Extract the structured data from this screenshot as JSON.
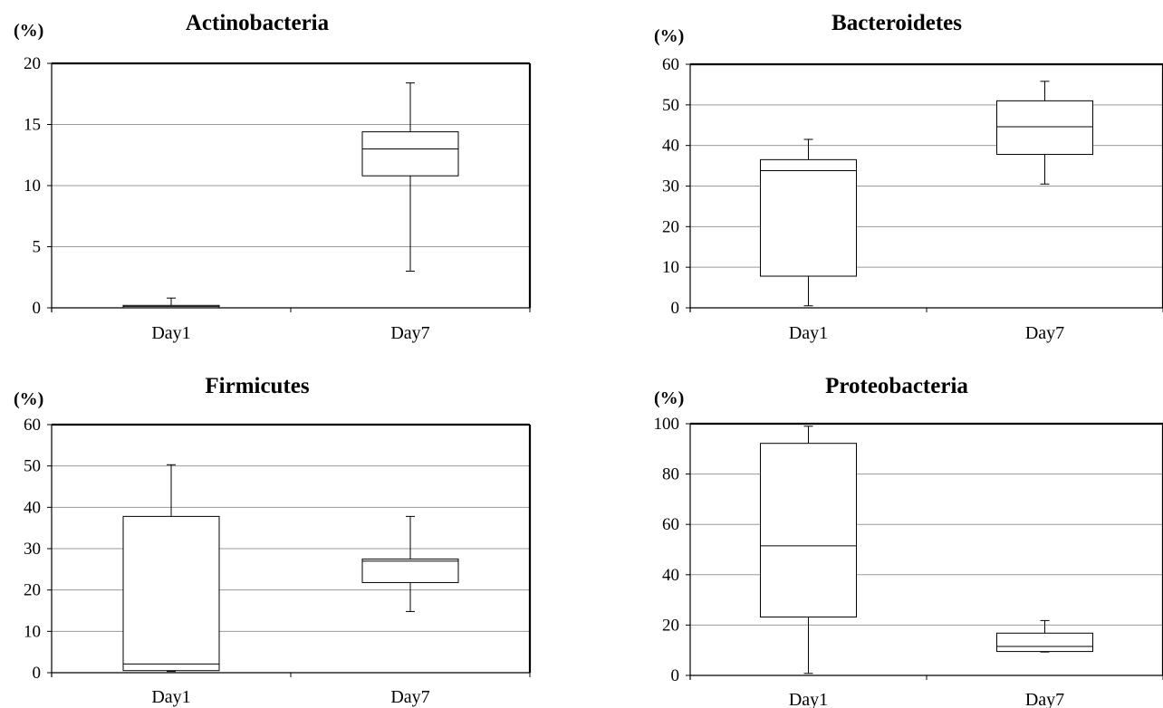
{
  "chart_data": [
    {
      "type": "box",
      "title": "Actinobacteria",
      "ylabel": "(%)",
      "ylim": [
        0,
        20
      ],
      "yticks": [
        0,
        5,
        10,
        15,
        20
      ],
      "grid": true,
      "categories": [
        "Day1",
        "Day7"
      ],
      "boxes": [
        {
          "category": "Day1",
          "min": 0,
          "q1": 0,
          "median": 0.1,
          "q3": 0.2,
          "max": 0.8
        },
        {
          "category": "Day7",
          "min": 3.0,
          "q1": 10.8,
          "median": 13.0,
          "q3": 14.4,
          "max": 18.4
        }
      ]
    },
    {
      "type": "box",
      "title": "Bacteroidetes",
      "ylabel": "(%)",
      "ylim": [
        0,
        60
      ],
      "yticks": [
        0,
        10,
        20,
        30,
        40,
        50,
        60
      ],
      "grid": true,
      "categories": [
        "Day1",
        "Day7"
      ],
      "boxes": [
        {
          "category": "Day1",
          "min": 0.5,
          "q1": 7.8,
          "median": 33.8,
          "q3": 36.5,
          "max": 41.5
        },
        {
          "category": "Day7",
          "min": 30.5,
          "q1": 37.8,
          "median": 44.6,
          "q3": 51.0,
          "max": 55.8
        }
      ]
    },
    {
      "type": "box",
      "title": "Firmicutes",
      "ylabel": "(%)",
      "ylim": [
        0,
        60
      ],
      "yticks": [
        0,
        10,
        20,
        30,
        40,
        50,
        60
      ],
      "grid": true,
      "categories": [
        "Day1",
        "Day7"
      ],
      "boxes": [
        {
          "category": "Day1",
          "min": 0.3,
          "q1": 0.5,
          "median": 2.1,
          "q3": 37.8,
          "max": 50.3
        },
        {
          "category": "Day7",
          "min": 14.8,
          "q1": 21.8,
          "median": 27.0,
          "q3": 27.5,
          "max": 37.8
        }
      ]
    },
    {
      "type": "box",
      "title": "Proteobacteria",
      "ylabel": "(%)",
      "ylim": [
        0,
        100
      ],
      "yticks": [
        0,
        20,
        40,
        60,
        80,
        100
      ],
      "grid": true,
      "categories": [
        "Day1",
        "Day7"
      ],
      "boxes": [
        {
          "category": "Day1",
          "min": 0.8,
          "q1": 23.2,
          "median": 51.5,
          "q3": 92.2,
          "max": 99.0
        },
        {
          "category": "Day7",
          "min": 9.3,
          "q1": 9.5,
          "median": 11.5,
          "q3": 16.8,
          "max": 21.8
        }
      ]
    }
  ]
}
